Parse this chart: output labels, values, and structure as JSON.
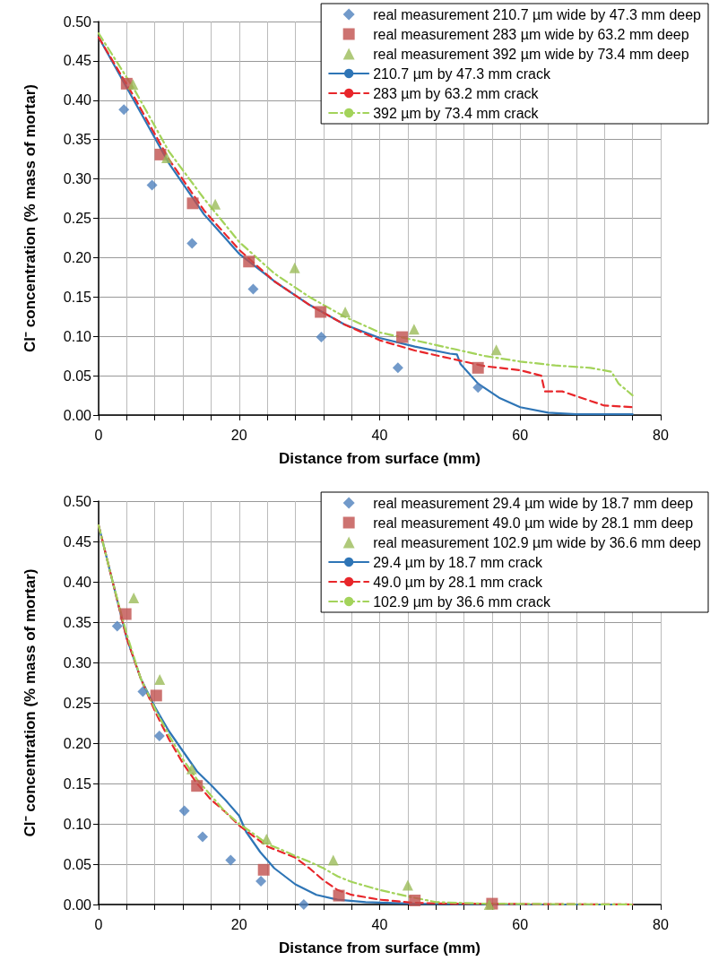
{
  "chart_data": [
    {
      "type": "scatter",
      "xlabel": "Distance from surface (mm)",
      "ylabel": "Cl⁻ concentration (% mass of mortar)",
      "xlim": [
        0,
        80
      ],
      "ylim": [
        0,
        0.5
      ],
      "xticks": [
        0,
        {
          "value": 4,
          "label": null
        },
        {
          "value": 8,
          "label": null
        },
        {
          "value": 12,
          "label": null
        },
        {
          "value": 16,
          "label": null
        },
        20,
        {
          "value": 24,
          "label": null
        },
        {
          "value": 28,
          "label": null
        },
        {
          "value": 32,
          "label": null
        },
        {
          "value": 36,
          "label": null
        },
        40,
        {
          "value": 44,
          "label": null
        },
        {
          "value": 48,
          "label": null
        },
        {
          "value": 52,
          "label": null
        },
        {
          "value": 56,
          "label": null
        },
        60,
        {
          "value": 64,
          "label": null
        },
        {
          "value": 68,
          "label": null
        },
        {
          "value": 72,
          "label": null
        },
        {
          "value": 76,
          "label": null
        },
        80
      ],
      "yticks": [
        {
          "value": 0,
          "label": "0.00"
        },
        {
          "value": 0.05,
          "label": "0.05"
        },
        {
          "value": 0.1,
          "label": "0.10"
        },
        {
          "value": 0.15,
          "label": "0.15"
        },
        {
          "value": 0.2,
          "label": "0.20"
        },
        {
          "value": 0.25,
          "label": "0.25"
        },
        {
          "value": 0.3,
          "label": "0.30"
        },
        {
          "value": 0.35,
          "label": "0.35"
        },
        {
          "value": 0.4,
          "label": "0.40"
        },
        {
          "value": 0.45,
          "label": "0.45"
        },
        {
          "value": 0.5,
          "label": "0.50"
        }
      ],
      "grid": true,
      "legend": "top right",
      "series": [
        {
          "name": "real measurement 210.7 µm wide by 47.3 mm deep",
          "color": "#4f81bd",
          "marker": "diamond",
          "x": [
            3.6,
            7.6,
            13.3,
            22,
            31.7,
            42.6,
            54
          ],
          "values": [
            0.388,
            0.292,
            0.218,
            0.16,
            0.099,
            0.06,
            0.035
          ]
        },
        {
          "name": "real measurement 283 µm wide by 63.2 mm deep",
          "color": "#c0504d",
          "marker": "square",
          "x": [
            4,
            8.8,
            13.4,
            21.4,
            31.6,
            43.2,
            54
          ],
          "values": [
            0.421,
            0.331,
            0.269,
            0.195,
            0.131,
            0.099,
            0.06
          ]
        },
        {
          "name": "real measurement 392 µm wide by 73.4 mm deep",
          "color": "#9bbb59",
          "marker": "triangle",
          "x": [
            4.9,
            9.7,
            16.6,
            27.9,
            35.1,
            44.9,
            56.6
          ],
          "values": [
            0.42,
            0.327,
            0.268,
            0.187,
            0.131,
            0.109,
            0.083
          ]
        },
        {
          "type": "line",
          "name": "210.7 µm by 47.3 mm crack",
          "color": "#2e75b6",
          "line_style": "solid",
          "x": [
            0,
            5,
            10,
            15,
            20,
            25,
            30,
            35,
            40,
            45,
            50,
            51,
            51.5,
            54,
            57,
            60,
            64,
            68,
            76
          ],
          "values": [
            0.48,
            0.4,
            0.32,
            0.255,
            0.205,
            0.17,
            0.14,
            0.115,
            0.098,
            0.087,
            0.078,
            0.077,
            0.065,
            0.04,
            0.022,
            0.01,
            0.003,
            0.001,
            0.001
          ]
        },
        {
          "type": "line",
          "name": "283 µm by 63.2 mm crack",
          "color": "#e8262a",
          "line_style": "dashed",
          "x": [
            0,
            5,
            10,
            15,
            20,
            25,
            30,
            35,
            40,
            45,
            50,
            55,
            60,
            63,
            63.5,
            66,
            70,
            72,
            76
          ],
          "values": [
            0.48,
            0.405,
            0.325,
            0.26,
            0.21,
            0.17,
            0.14,
            0.115,
            0.095,
            0.082,
            0.072,
            0.062,
            0.057,
            0.05,
            0.03,
            0.03,
            0.018,
            0.012,
            0.01
          ]
        },
        {
          "type": "line",
          "name": "392 µm by 73.4 mm crack",
          "color": "#a3d35a",
          "line_style": "dashdot",
          "x": [
            0,
            5,
            10,
            15,
            20,
            25,
            30,
            35,
            40,
            45,
            50,
            55,
            60,
            65,
            70,
            73,
            74,
            76
          ],
          "values": [
            0.485,
            0.415,
            0.335,
            0.275,
            0.22,
            0.18,
            0.15,
            0.125,
            0.105,
            0.095,
            0.085,
            0.075,
            0.068,
            0.063,
            0.06,
            0.055,
            0.04,
            0.025
          ]
        }
      ]
    },
    {
      "type": "scatter",
      "xlabel": "Distance from surface (mm)",
      "ylabel": "Cl⁻ concentration (% mass of mortar)",
      "xlim": [
        0,
        80
      ],
      "ylim": [
        0,
        0.5
      ],
      "xticks": [
        0,
        {
          "value": 4,
          "label": null
        },
        {
          "value": 8,
          "label": null
        },
        {
          "value": 12,
          "label": null
        },
        {
          "value": 16,
          "label": null
        },
        20,
        {
          "value": 24,
          "label": null
        },
        {
          "value": 28,
          "label": null
        },
        {
          "value": 32,
          "label": null
        },
        {
          "value": 36,
          "label": null
        },
        40,
        {
          "value": 44,
          "label": null
        },
        {
          "value": 48,
          "label": null
        },
        {
          "value": 52,
          "label": null
        },
        {
          "value": 56,
          "label": null
        },
        60,
        {
          "value": 64,
          "label": null
        },
        {
          "value": 68,
          "label": null
        },
        {
          "value": 72,
          "label": null
        },
        {
          "value": 76,
          "label": null
        },
        80
      ],
      "yticks": [
        {
          "value": 0,
          "label": "0.00"
        },
        {
          "value": 0.05,
          "label": "0.05"
        },
        {
          "value": 0.1,
          "label": "0.10"
        },
        {
          "value": 0.15,
          "label": "0.15"
        },
        {
          "value": 0.2,
          "label": "0.20"
        },
        {
          "value": 0.25,
          "label": "0.25"
        },
        {
          "value": 0.3,
          "label": "0.30"
        },
        {
          "value": 0.35,
          "label": "0.35"
        },
        {
          "value": 0.4,
          "label": "0.40"
        },
        {
          "value": 0.45,
          "label": "0.45"
        },
        {
          "value": 0.5,
          "label": "0.50"
        }
      ],
      "grid": true,
      "legend": "top right",
      "series": [
        {
          "name": "real measurement 29.4 µm wide by 18.7 mm deep",
          "color": "#4f81bd",
          "marker": "diamond",
          "x": [
            2.65,
            6.3,
            8.65,
            12.2,
            14.8,
            18.8,
            23.1,
            29.2
          ],
          "values": [
            0.345,
            0.264,
            0.209,
            0.116,
            0.084,
            0.055,
            0.029,
            0
          ]
        },
        {
          "name": "real measurement 49.0 µm wide by 28.1 mm deep",
          "color": "#c0504d",
          "marker": "square",
          "x": [
            3.85,
            8.2,
            14,
            23.5,
            34.2,
            45,
            56
          ],
          "values": [
            0.36,
            0.259,
            0.147,
            0.043,
            0.011,
            0.005,
            0.001
          ]
        },
        {
          "name": "real measurement 102.9 µm wide by 36.6 mm deep",
          "color": "#9bbb59",
          "marker": "triangle",
          "x": [
            5,
            8.7,
            13.25,
            23.9,
            33.4,
            44,
            55.6
          ],
          "values": [
            0.38,
            0.279,
            0.168,
            0.081,
            0.055,
            0.024,
            0
          ]
        },
        {
          "type": "line",
          "name": "29.4 µm by 18.7 mm crack",
          "color": "#2e75b6",
          "line_style": "solid",
          "x": [
            0,
            2,
            4,
            6,
            8,
            10,
            12,
            14,
            16,
            18,
            20,
            21,
            23,
            25,
            28,
            31,
            34,
            38,
            45,
            60,
            76
          ],
          "values": [
            0.47,
            0.4,
            0.33,
            0.28,
            0.245,
            0.215,
            0.19,
            0.165,
            0.148,
            0.13,
            0.11,
            0.09,
            0.065,
            0.045,
            0.025,
            0.012,
            0.006,
            0.003,
            0.001,
            0,
            0
          ]
        },
        {
          "type": "line",
          "name": "49.0 µm by 28.1 mm crack",
          "color": "#e8262a",
          "line_style": "dashed",
          "x": [
            0,
            2,
            4,
            6,
            8,
            10,
            12,
            14,
            16,
            18,
            20,
            22,
            24,
            26,
            28,
            30,
            32,
            34,
            36,
            40,
            45,
            50,
            76
          ],
          "values": [
            0.47,
            0.4,
            0.33,
            0.28,
            0.24,
            0.205,
            0.175,
            0.15,
            0.13,
            0.115,
            0.098,
            0.085,
            0.072,
            0.065,
            0.058,
            0.045,
            0.03,
            0.018,
            0.012,
            0.006,
            0.002,
            0.001,
            0
          ]
        },
        {
          "type": "line",
          "name": "102.9 µm by 36.6 mm crack",
          "color": "#a3d35a",
          "line_style": "dashdot",
          "x": [
            0,
            2,
            4,
            6,
            8,
            10,
            12,
            14,
            16,
            18,
            20,
            22,
            24,
            26,
            28,
            30,
            32,
            34,
            36,
            40,
            44,
            48,
            55,
            76
          ],
          "values": [
            0.47,
            0.4,
            0.335,
            0.28,
            0.243,
            0.21,
            0.18,
            0.155,
            0.135,
            0.115,
            0.1,
            0.088,
            0.075,
            0.068,
            0.06,
            0.053,
            0.045,
            0.035,
            0.028,
            0.018,
            0.01,
            0.003,
            0.001,
            0
          ]
        }
      ]
    }
  ]
}
